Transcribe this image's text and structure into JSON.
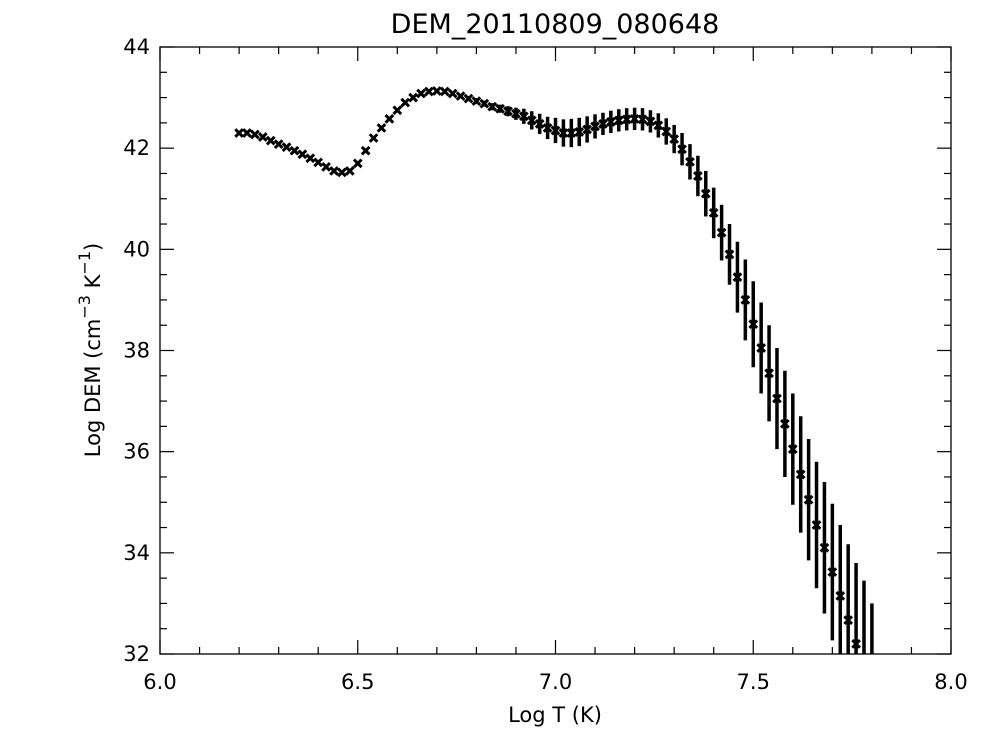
{
  "chart_data": {
    "type": "scatter",
    "title": "DEM_20110809_080648",
    "xlabel": "Log T (K)",
    "ylabel": {
      "base": "Log DEM (cm",
      "sup1": "−3",
      "mid": " K",
      "sup2": "−1",
      "end": ")"
    },
    "xlim": [
      6.0,
      8.0
    ],
    "ylim": [
      32,
      44
    ],
    "x_ticks": [
      "6.0",
      "6.5",
      "7.0",
      "7.5",
      "8.0"
    ],
    "y_ticks": [
      "32",
      "34",
      "36",
      "38",
      "40",
      "42",
      "44"
    ],
    "grid": false,
    "marker": "x",
    "color": "#000000",
    "x": [
      6.2,
      6.22,
      6.24,
      6.26,
      6.28,
      6.3,
      6.32,
      6.34,
      6.36,
      6.38,
      6.4,
      6.42,
      6.44,
      6.46,
      6.48,
      6.5,
      6.52,
      6.54,
      6.56,
      6.58,
      6.6,
      6.62,
      6.64,
      6.66,
      6.68,
      6.7,
      6.72,
      6.74,
      6.76,
      6.78,
      6.8,
      6.82,
      6.84,
      6.86,
      6.88,
      6.9,
      6.92,
      6.94,
      6.96,
      6.98,
      7.0,
      7.02,
      7.04,
      7.06,
      7.08,
      7.1,
      7.12,
      7.14,
      7.16,
      7.18,
      7.2,
      7.22,
      7.24,
      7.26,
      7.28,
      7.3,
      7.32,
      7.34,
      7.36,
      7.38,
      7.4,
      7.42,
      7.44,
      7.46,
      7.48,
      7.5,
      7.52,
      7.54,
      7.56,
      7.58,
      7.6,
      7.62,
      7.64,
      7.66,
      7.68,
      7.7,
      7.72,
      7.74,
      7.76,
      7.78,
      7.8
    ],
    "y": [
      42.3,
      42.3,
      42.27,
      42.22,
      42.15,
      42.08,
      42.02,
      41.95,
      41.88,
      41.8,
      41.72,
      41.63,
      41.55,
      41.52,
      41.55,
      41.7,
      41.95,
      42.2,
      42.4,
      42.58,
      42.75,
      42.9,
      43.0,
      43.08,
      43.12,
      43.13,
      43.12,
      43.08,
      43.03,
      42.98,
      42.93,
      42.88,
      42.82,
      42.78,
      42.73,
      42.68,
      42.63,
      42.55,
      42.48,
      42.4,
      42.35,
      42.3,
      42.3,
      42.32,
      42.37,
      42.43,
      42.48,
      42.52,
      42.55,
      42.57,
      42.58,
      42.57,
      42.53,
      42.45,
      42.33,
      42.18,
      41.98,
      41.73,
      41.45,
      41.1,
      40.72,
      40.33,
      39.9,
      39.45,
      39.0,
      38.52,
      38.05,
      37.55,
      37.05,
      36.55,
      36.05,
      35.55,
      35.05,
      34.55,
      34.1,
      33.62,
      33.15,
      32.67,
      32.2,
      31.75,
      31.3
    ],
    "yerr": [
      0.02,
      0.02,
      0.02,
      0.02,
      0.02,
      0.02,
      0.02,
      0.02,
      0.02,
      0.02,
      0.02,
      0.02,
      0.02,
      0.02,
      0.02,
      0.02,
      0.02,
      0.02,
      0.02,
      0.02,
      0.02,
      0.02,
      0.02,
      0.02,
      0.02,
      0.03,
      0.03,
      0.03,
      0.04,
      0.05,
      0.06,
      0.06,
      0.07,
      0.08,
      0.1,
      0.12,
      0.15,
      0.18,
      0.2,
      0.22,
      0.25,
      0.27,
      0.28,
      0.28,
      0.26,
      0.24,
      0.22,
      0.22,
      0.22,
      0.22,
      0.22,
      0.22,
      0.22,
      0.24,
      0.26,
      0.28,
      0.32,
      0.35,
      0.4,
      0.45,
      0.5,
      0.55,
      0.6,
      0.7,
      0.8,
      0.85,
      0.9,
      0.95,
      1.0,
      1.05,
      1.1,
      1.15,
      1.2,
      1.25,
      1.3,
      1.35,
      1.4,
      1.5,
      1.6,
      1.7,
      1.7
    ]
  }
}
